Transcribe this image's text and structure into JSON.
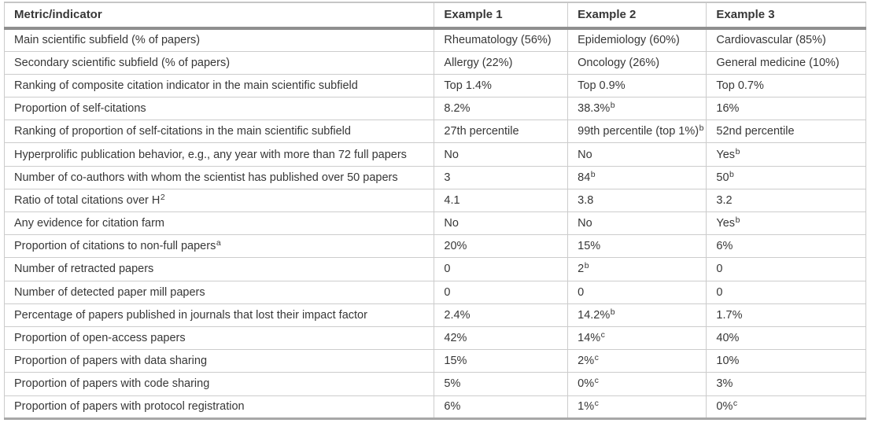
{
  "table": {
    "header": {
      "metric": "Metric/indicator",
      "examples": [
        "Example 1",
        "Example 2",
        "Example 3"
      ]
    },
    "rows": [
      {
        "metric": "Main scientific subfield (% of papers)",
        "values": [
          "Rheumatology (56%)",
          "Epidemiology (60%)",
          "Cardiovascular (85%)"
        ]
      },
      {
        "metric": "Secondary scientific subfield (% of papers)",
        "values": [
          "Allergy (22%)",
          "Oncology (26%)",
          "General medicine (10%)"
        ]
      },
      {
        "metric": "Ranking of composite citation indicator in the main scientific subfield",
        "values": [
          "Top 1.4%",
          "Top 0.9%",
          "Top 0.7%"
        ]
      },
      {
        "metric": "Proportion of self-citations",
        "values": [
          "8.2%",
          "38.3%^b",
          "16%"
        ]
      },
      {
        "metric": "Ranking of proportion of self-citations in the main scientific subfield",
        "values": [
          "27th percentile",
          "99th percentile (top 1%)^b",
          "52nd percentile"
        ]
      },
      {
        "metric": "Hyperprolific publication behavior, e.g., any year with more than 72 full papers",
        "values": [
          "No",
          "No",
          "Yes^b"
        ]
      },
      {
        "metric": "Number of co-authors with whom the scientist has published over 50 papers",
        "values": [
          "3",
          "84^b",
          "50^b"
        ]
      },
      {
        "metric": "Ratio of total citations over H^2",
        "values": [
          "4.1",
          "3.8",
          "3.2"
        ]
      },
      {
        "metric": "Any evidence for citation farm",
        "values": [
          "No",
          "No",
          "Yes^b"
        ]
      },
      {
        "metric": "Proportion of citations to non-full papers^a",
        "values": [
          "20%",
          "15%",
          "6%"
        ]
      },
      {
        "metric": "Number of retracted papers",
        "values": [
          "0",
          "2^b",
          "0"
        ]
      },
      {
        "metric": "Number of detected paper mill papers",
        "values": [
          "0",
          "0",
          "0"
        ]
      },
      {
        "metric": "Percentage of papers published in journals that lost their impact factor",
        "values": [
          "2.4%",
          "14.2%^b",
          "1.7%"
        ]
      },
      {
        "metric": "Proportion of open-access papers",
        "values": [
          "42%",
          "14%^c",
          "40%"
        ]
      },
      {
        "metric": "Proportion of papers with data sharing",
        "values": [
          "15%",
          "2%^c",
          "10%"
        ]
      },
      {
        "metric": "Proportion of papers with code sharing",
        "values": [
          "5%",
          "0%^c",
          "3%"
        ]
      },
      {
        "metric": "Proportion of papers with protocol registration",
        "values": [
          "6%",
          "1%^c",
          "0%^c"
        ]
      }
    ],
    "colors": {
      "text": "#373737",
      "header_rule": "#8f8f8f",
      "row_rule": "#cccccc",
      "bottom_rule": "#a8a8a8",
      "top_rule": "#c6c6c6"
    }
  }
}
